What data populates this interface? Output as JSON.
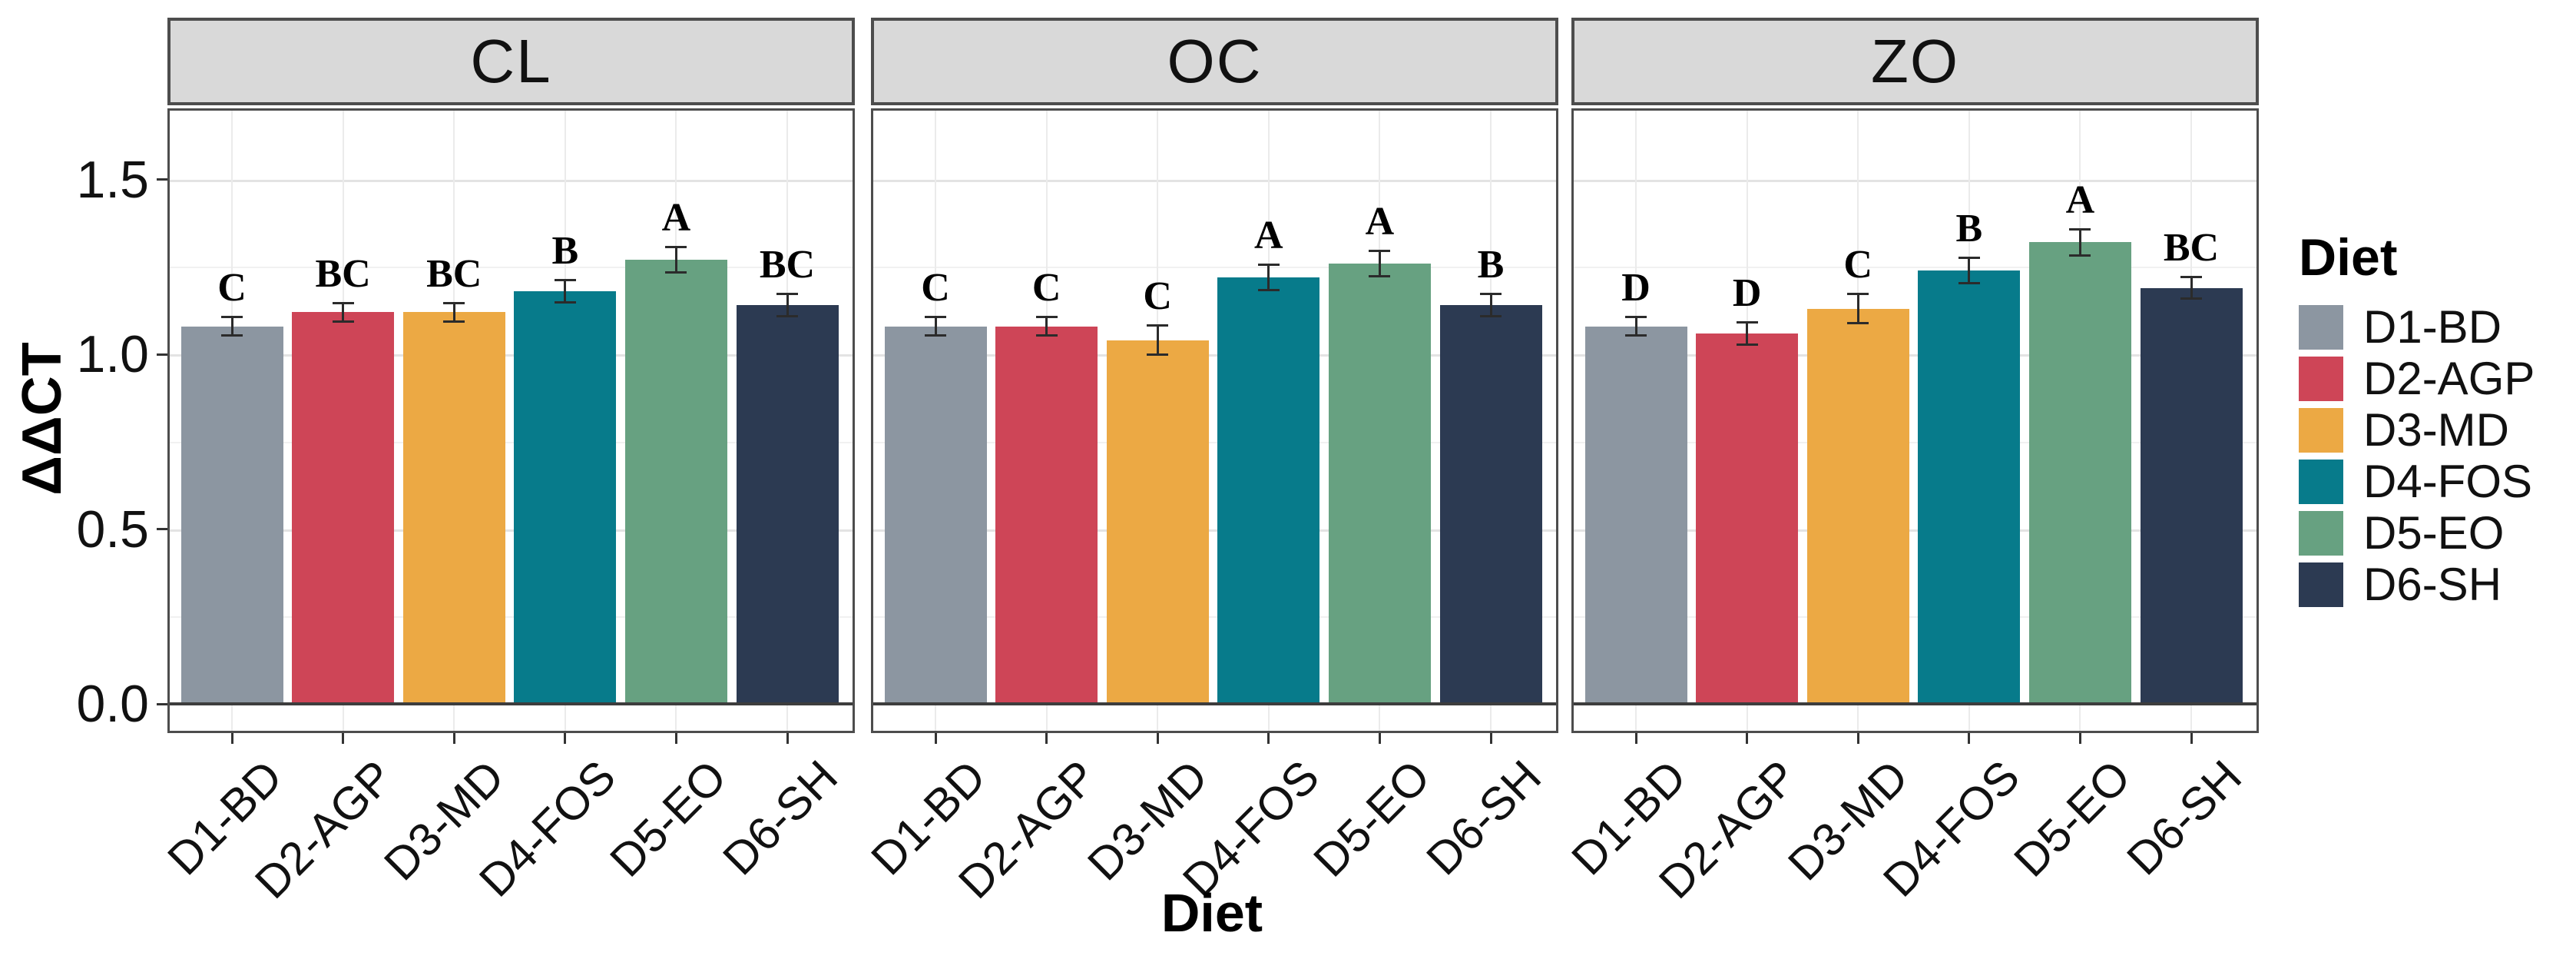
{
  "figure": {
    "background": "#FFFFFF",
    "strip_fill": "#D9D9D9",
    "border_color": "#4D4D4D",
    "grid_major_color": "#E3E3E3",
    "grid_minor_color": "#F1F1F1",
    "axis_text_color": "#111111",
    "error_bar_color": "#2B2B2B",
    "zero_line_color": "#3D3D3D"
  },
  "chart_data": {
    "type": "bar",
    "title": "",
    "xlabel": "Diet",
    "ylabel": "ΔΔCT",
    "categories": [
      "D1-BD",
      "D2-AGP",
      "D3-MD",
      "D4-FOS",
      "D5-EO",
      "D6-SH"
    ],
    "palette": [
      "#8C96A1",
      "#CE4557",
      "#ECA944",
      "#077B8B",
      "#67A181",
      "#2C3A52"
    ],
    "ylim": [
      0,
      1.7
    ],
    "yticks": [
      0,
      0.5,
      1.0,
      1.5
    ],
    "ytick_labels": [
      "0.0",
      "0.5",
      "1.0",
      "1.5"
    ],
    "grid": "on",
    "error_bars": true,
    "facets": [
      {
        "label": "CL",
        "values": [
          1.08,
          1.12,
          1.12,
          1.18,
          1.27,
          1.14
        ],
        "errors": [
          0.03,
          0.03,
          0.03,
          0.035,
          0.04,
          0.035
        ],
        "letters": [
          "C",
          "BC",
          "BC",
          "B",
          "A",
          "BC"
        ]
      },
      {
        "label": "OC",
        "values": [
          1.08,
          1.08,
          1.04,
          1.22,
          1.26,
          1.14
        ],
        "errors": [
          0.03,
          0.03,
          0.045,
          0.04,
          0.04,
          0.035
        ],
        "letters": [
          "C",
          "C",
          "C",
          "A",
          "A",
          "B"
        ]
      },
      {
        "label": "ZO",
        "values": [
          1.08,
          1.06,
          1.13,
          1.24,
          1.32,
          1.19
        ],
        "errors": [
          0.03,
          0.035,
          0.045,
          0.04,
          0.04,
          0.035
        ],
        "letters": [
          "D",
          "D",
          "C",
          "B",
          "A",
          "BC"
        ]
      }
    ],
    "legend": {
      "title": "Diet",
      "position": "right",
      "entries": [
        {
          "label": "D1-BD",
          "color": "#8C96A1"
        },
        {
          "label": "D2-AGP",
          "color": "#CE4557"
        },
        {
          "label": "D3-MD",
          "color": "#ECA944"
        },
        {
          "label": "D4-FOS",
          "color": "#077B8B"
        },
        {
          "label": "D5-EO",
          "color": "#67A181"
        },
        {
          "label": "D6-SH",
          "color": "#2C3A52"
        }
      ]
    }
  }
}
